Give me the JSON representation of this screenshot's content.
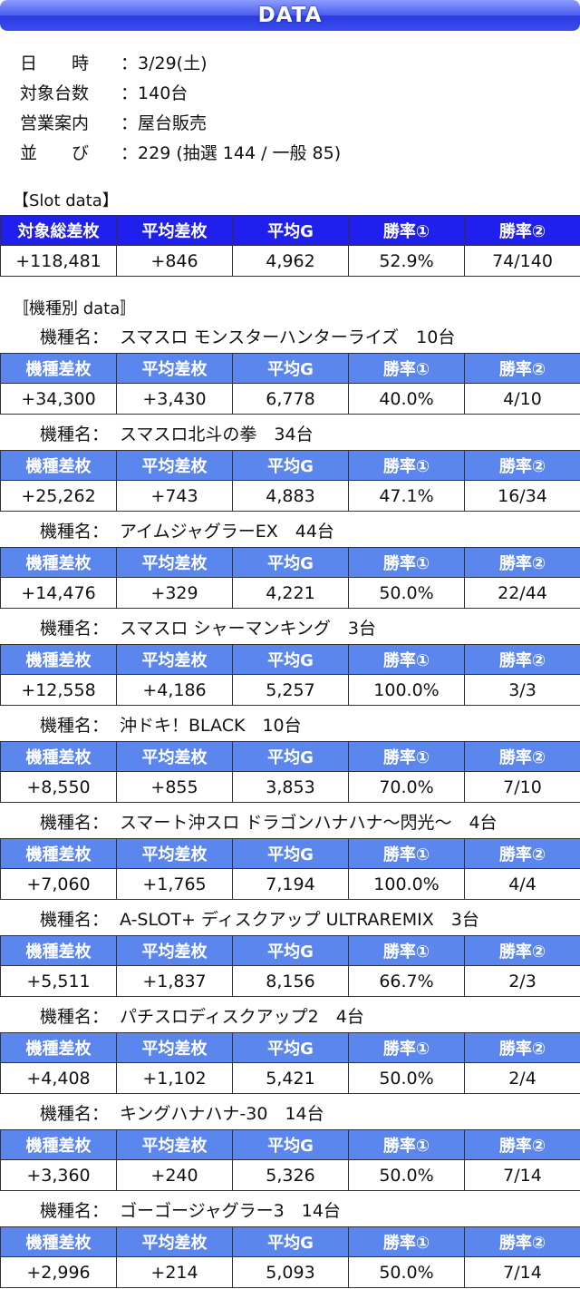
{
  "header": {
    "title": "DATA"
  },
  "info": [
    {
      "label": "日　　時",
      "colon": "：",
      "value": "3/29(土)"
    },
    {
      "label": "対象台数",
      "colon": "：",
      "value": "140台"
    },
    {
      "label": "営業案内",
      "colon": "：",
      "value": "屋台販売"
    },
    {
      "label": "並　　び",
      "colon": "：",
      "value": "229 (抽選 144 / 一般 85)"
    }
  ],
  "slot_section": {
    "title": "【Slot data】",
    "headers": [
      "対象総差枚",
      "平均差枚",
      "平均G",
      "勝率①",
      "勝率②"
    ],
    "row": [
      "+118,481",
      "+846",
      "4,962",
      "52.9%",
      "74/140"
    ]
  },
  "model_section": {
    "title": "〚機種別 data〛",
    "label": "機種名：",
    "headers": [
      "機種差枚",
      "平均差枚",
      "平均G",
      "勝率①",
      "勝率②"
    ],
    "models": [
      {
        "name": "スマスロ モンスターハンターライズ　10台",
        "row": [
          "+34,300",
          "+3,430",
          "6,778",
          "40.0%",
          "4/10"
        ]
      },
      {
        "name": "スマスロ北斗の拳　34台",
        "row": [
          "+25,262",
          "+743",
          "4,883",
          "47.1%",
          "16/34"
        ]
      },
      {
        "name": "アイムジャグラーEX　44台",
        "row": [
          "+14,476",
          "+329",
          "4,221",
          "50.0%",
          "22/44"
        ]
      },
      {
        "name": "スマスロ シャーマンキング　3台",
        "row": [
          "+12,558",
          "+4,186",
          "5,257",
          "100.0%",
          "3/3"
        ]
      },
      {
        "name": "沖ドキ！BLACK　10台",
        "row": [
          "+8,550",
          "+855",
          "3,853",
          "70.0%",
          "7/10"
        ]
      },
      {
        "name": "スマート沖スロ ドラゴンハナハナ～閃光～　4台",
        "row": [
          "+7,060",
          "+1,765",
          "7,194",
          "100.0%",
          "4/4"
        ]
      },
      {
        "name": "A-SLOT+ ディスクアップ ULTRAREMIX　3台",
        "row": [
          "+5,511",
          "+1,837",
          "8,156",
          "66.7%",
          "2/3"
        ]
      },
      {
        "name": "パチスロディスクアップ2　4台",
        "row": [
          "+4,408",
          "+1,102",
          "5,421",
          "50.0%",
          "2/4"
        ]
      },
      {
        "name": "キングハナハナ-30　14台",
        "row": [
          "+3,360",
          "+240",
          "5,326",
          "50.0%",
          "7/14"
        ]
      },
      {
        "name": "ゴーゴージャグラー3　14台",
        "row": [
          "+2,996",
          "+214",
          "5,093",
          "50.0%",
          "7/14"
        ]
      }
    ]
  },
  "colors": {
    "title_bar": "#3a4cf0",
    "slot_header": "#2020ee",
    "model_header": "#5a86ee"
  }
}
